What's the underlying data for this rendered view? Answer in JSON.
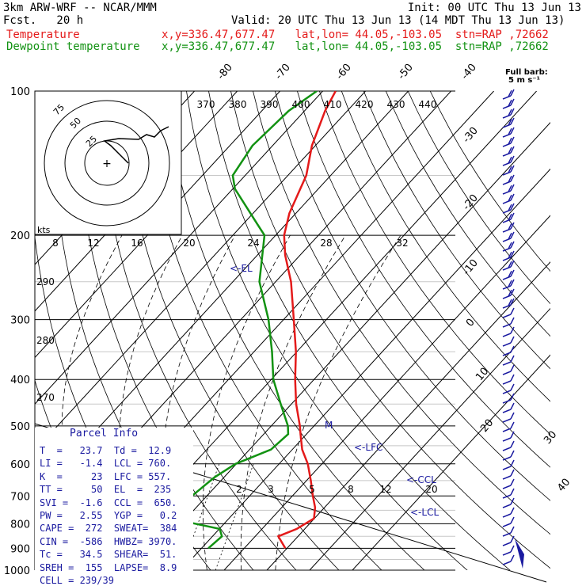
{
  "header": {
    "model": "3km ARW-WRF -- NCAR/MMM",
    "init": "Init: 00 UTC Thu 13 Jun 13",
    "fcst": "Fcst.   20 h",
    "valid": "Valid: 20 UTC Thu 13 Jun 13 (14 MDT Thu 13 Jun 13)",
    "temperature_label": "Temperature",
    "dewpoint_label": "Dewpoint temperature",
    "temperature_loc": "x,y=336.47,677.47   lat,lon= 44.05,-103.05  stn=RAP ,72662",
    "dewpoint_loc": "x,y=336.47,677.47   lat,lon= 44.05,-103.05  stn=RAP ,72662"
  },
  "colors": {
    "temperature": "#e41a1a",
    "dewpoint": "#129212",
    "annotation": "#1a1aa0",
    "dry_adiabat": "#000000",
    "moist_adiabat": "#000000",
    "mixing_ratio": "#000000"
  },
  "wind_legend": {
    "title": "Full barb:",
    "value": "5 m s⁻¹"
  },
  "hodograph": {
    "units": "kts",
    "ring_labels": [
      "75",
      "50",
      "25"
    ],
    "center_marker": "+"
  },
  "chart_data": {
    "type": "line",
    "subtype": "skew-T log-P sounding",
    "pressure_axis": {
      "ticks": [
        100,
        200,
        300,
        400,
        500,
        600,
        700,
        800,
        900,
        1000
      ],
      "scale": "log",
      "inverted": true
    },
    "isotherm_labels": [
      "-80",
      "-70",
      "-60",
      "-50",
      "-40",
      "-30",
      "-20",
      "-10",
      "0",
      "10",
      "20",
      "30",
      "40"
    ],
    "theta_e_labels": [
      "370",
      "380",
      "390",
      "400",
      "410",
      "420",
      "430",
      "440"
    ],
    "theta_labels": [
      "290",
      "280",
      "270"
    ],
    "mixing_ratio_labels": [
      "2",
      "3",
      "5",
      "8",
      "12",
      "20"
    ],
    "hodograph_speed_labels": [
      "8",
      "12",
      "16",
      "20",
      "24",
      "28",
      "32"
    ],
    "series": [
      {
        "name": "Temperature",
        "points": [
          [
            900,
            29.6
          ],
          [
            850,
            25.4
          ],
          [
            820,
            28.1
          ],
          [
            780,
            29.9
          ],
          [
            740,
            27.8
          ],
          [
            700,
            24.8
          ],
          [
            650,
            21.0
          ],
          [
            600,
            16.7
          ],
          [
            560,
            12.3
          ],
          [
            520,
            8.6
          ],
          [
            500,
            6.7
          ],
          [
            450,
            1.1
          ],
          [
            400,
            -4.4
          ],
          [
            350,
            -10.2
          ],
          [
            300,
            -17.6
          ],
          [
            250,
            -26.4
          ],
          [
            220,
            -33.5
          ],
          [
            200,
            -38.0
          ],
          [
            180,
            -41.5
          ],
          [
            150,
            -45.7
          ],
          [
            130,
            -50.8
          ],
          [
            110,
            -55.2
          ],
          [
            100,
            -57.0
          ]
        ]
      },
      {
        "name": "Dewpoint temperature",
        "points": [
          [
            900,
            11.6
          ],
          [
            850,
            12.2
          ],
          [
            820,
            10.1
          ],
          [
            780,
            -3.6
          ],
          [
            700,
            -3.5
          ],
          [
            640,
            -2.2
          ],
          [
            600,
            -0.2
          ],
          [
            560,
            5.0
          ],
          [
            520,
            5.7
          ],
          [
            500,
            3.9
          ],
          [
            450,
            -2.5
          ],
          [
            400,
            -9.5
          ],
          [
            350,
            -15.8
          ],
          [
            300,
            -23.5
          ],
          [
            250,
            -33.8
          ],
          [
            200,
            -42.6
          ],
          [
            190,
            -46.5
          ],
          [
            160,
            -59.5
          ],
          [
            150,
            -62.9
          ],
          [
            130,
            -64.7
          ],
          [
            110,
            -63.7
          ],
          [
            100,
            -61.4
          ]
        ]
      }
    ],
    "annotations": [
      "<-EL",
      "M",
      "<-LFC",
      "<-CCL",
      "<-LCL"
    ],
    "wind_barb_column": "right"
  },
  "parcel_info": {
    "title": "Parcel Info",
    "rows": [
      "T  =   23.7  Td =  12.9",
      "LI =   -1.4  LCL = 760.",
      "K  =     23  LFC = 557.",
      "TT =     50  EL  =  235",
      "SVI =  -1.6  CCL =  650.",
      "PW =   2.55  YGP =   0.2",
      "CAPE =  272  SWEAT=  384",
      "CIN =  -586  HWBZ= 3970.",
      "Tc =   34.5  SHEAR=  51.",
      "SREH =  155  LAPSE=  8.9",
      "CELL = 239/39"
    ]
  }
}
